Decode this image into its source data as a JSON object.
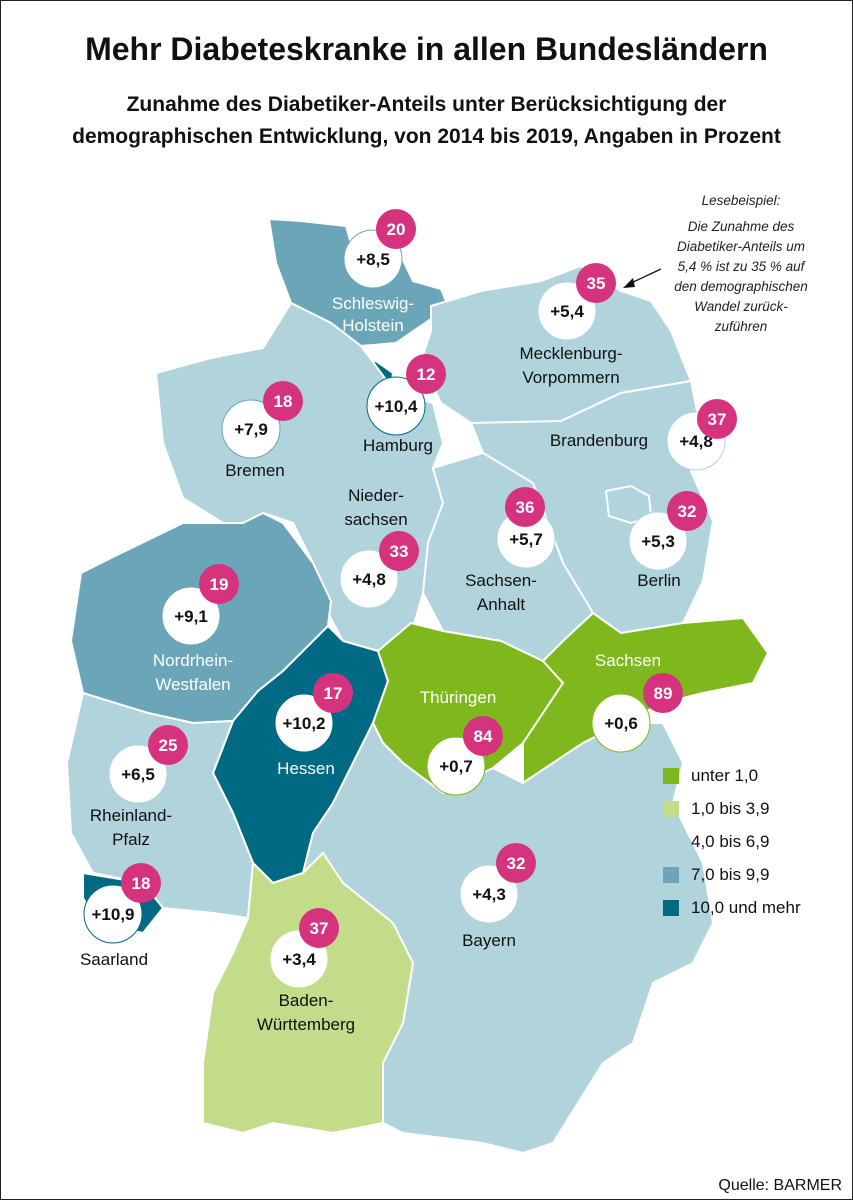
{
  "title": "Mehr Diabeteskranke in allen Bundesländern",
  "subtitle_line1": "Zunahme des Diabetiker-Anteils unter Berücksichtigung der",
  "subtitle_line2": "demographischen Entwicklung, von 2014 bis 2019, Angaben in Prozent",
  "note": {
    "heading": "Lesebeispiel:",
    "lines": [
      "Die Zunahme des",
      "Diabetiker-Anteils um",
      "5,4 % ist zu 35 % auf",
      "den demographischen",
      "Wandel zurück-",
      "zuführen"
    ]
  },
  "legend": [
    {
      "label": "unter 1,0",
      "color": "#7fb81c"
    },
    {
      "label": "1,0 bis 3,9",
      "color": "#c2dc8a"
    },
    {
      "label": "4,0 bis 6,9",
      "color": "#b0d3dc"
    },
    {
      "label": "7,0 bis 9,9",
      "color": "#6aa6b8"
    },
    {
      "label": "10,0 und mehr",
      "color": "#006a84"
    }
  ],
  "badge_color": "#d6337f",
  "states": [
    {
      "name": [
        "Schleswig-",
        "Holstein"
      ],
      "change": "+8,5",
      "share": "20"
    },
    {
      "name": [
        "Mecklenburg-",
        "Vorpommern"
      ],
      "change": "+5,4",
      "share": "35"
    },
    {
      "name": [
        "Hamburg"
      ],
      "change": "+10,4",
      "share": "12"
    },
    {
      "name": [
        "Bremen"
      ],
      "change": "+7,9",
      "share": "18"
    },
    {
      "name": [
        "Brandenburg"
      ],
      "change": "+4,8",
      "share": "37"
    },
    {
      "name": [
        "Nieder-",
        "sachsen"
      ],
      "change": "+4,8",
      "share": "33"
    },
    {
      "name": [
        "Sachsen-",
        "Anhalt"
      ],
      "change": "+5,7",
      "share": "36"
    },
    {
      "name": [
        "Berlin"
      ],
      "change": "+5,3",
      "share": "32"
    },
    {
      "name": [
        "Nordrhein-",
        "Westfalen"
      ],
      "change": "+9,1",
      "share": "19"
    },
    {
      "name": [
        "Hessen"
      ],
      "change": "+10,2",
      "share": "17"
    },
    {
      "name": [
        "Thüringen"
      ],
      "change": "+0,7",
      "share": "84"
    },
    {
      "name": [
        "Sachsen"
      ],
      "change": "+0,6",
      "share": "89"
    },
    {
      "name": [
        "Rheinland-",
        "Pfalz"
      ],
      "change": "+6,5",
      "share": "25"
    },
    {
      "name": [
        "Saarland"
      ],
      "change": "+10,9",
      "share": "18"
    },
    {
      "name": [
        "Bayern"
      ],
      "change": "+4,3",
      "share": "32"
    },
    {
      "name": [
        "Baden-",
        "Württemberg"
      ],
      "change": "+3,4",
      "share": "37"
    }
  ],
  "source": "Quelle: BARMER"
}
